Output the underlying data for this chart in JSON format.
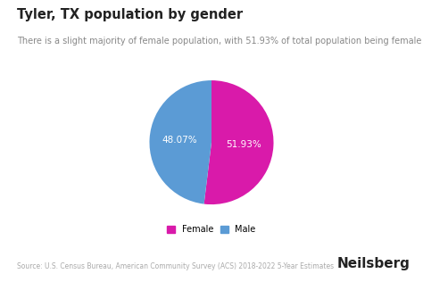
{
  "title": "Tyler, TX population by gender",
  "subtitle": "There is a slight majority of female population, with 51.93% of total population being female",
  "slices": [
    51.93,
    48.07
  ],
  "labels": [
    "Female",
    "Male"
  ],
  "colors": [
    "#d91aaa",
    "#5b9bd5"
  ],
  "pct_labels": [
    "51.93%",
    "48.07%"
  ],
  "startangle": 90,
  "legend_labels": [
    "Female",
    "Male"
  ],
  "source_text": "Source: U.S. Census Bureau, American Community Survey (ACS) 2018-2022 5-Year Estimates",
  "brand_text": "Neilsberg",
  "background_color": "#ffffff",
  "text_color": "#222222",
  "pct_text_color": "#ffffff",
  "title_fontsize": 10.5,
  "subtitle_fontsize": 7.0,
  "source_fontsize": 5.5,
  "brand_fontsize": 11,
  "legend_fontsize": 7.0
}
